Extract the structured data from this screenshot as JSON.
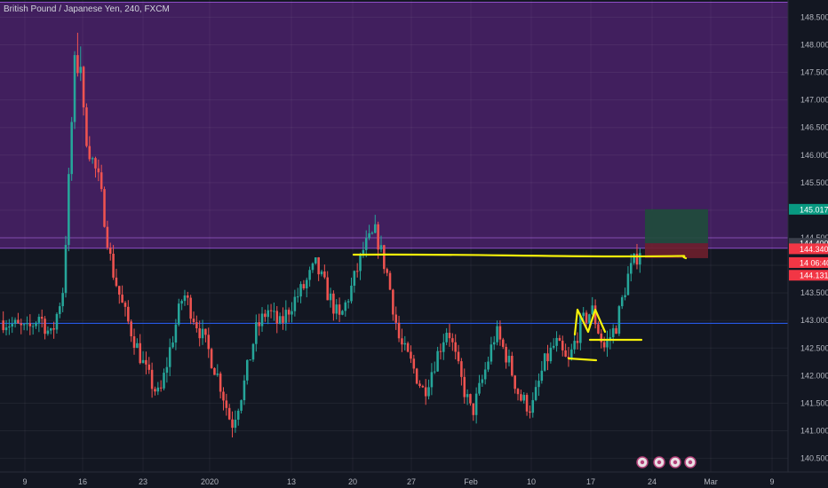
{
  "header": {
    "symbol_title": "British Pound / Japanese Yen, 240, FXCM"
  },
  "colors": {
    "background": "#131722",
    "up": "#26a69a",
    "down": "#ef5350",
    "zone_fill": "#4a2168",
    "zone_border": "#8e4ec6",
    "drawing": "#f5f10a",
    "blue_line": "#2962ff",
    "tp_fill": "#1f4d3b",
    "sl_fill": "#6e1f2c"
  },
  "chart_data": {
    "type": "candlestick",
    "title": "British Pound / Japanese Yen, 240, FXCM",
    "ylim": [
      140.3,
      148.78
    ],
    "y_ticks": [
      "148.500",
      "148.000",
      "147.500",
      "147.000",
      "146.500",
      "146.000",
      "145.500",
      "145.000",
      "144.500",
      "144.000",
      "143.500",
      "143.000",
      "142.500",
      "142.000",
      "141.500",
      "141.000",
      "140.500"
    ],
    "x_ticks": [
      "9",
      "16",
      "23",
      "2020",
      "13",
      "20",
      "27",
      "Feb",
      "10",
      "17",
      "24",
      "Mar",
      "9"
    ],
    "price_tags": [
      {
        "label": "145.017",
        "value": 145.017,
        "color": "#089981"
      },
      {
        "label": "144.400",
        "value": 144.4,
        "color": "#3a3f4b"
      },
      {
        "label": "144.340",
        "value": 144.3,
        "color": "#f23645"
      },
      {
        "label": "14 06:40",
        "value": 144.05,
        "color": "#f23645"
      },
      {
        "label": "144.131",
        "value": 143.82,
        "color": "#f23645"
      }
    ],
    "zone": {
      "top": 148.78,
      "bottom": 144.31
    },
    "horizontal_line": 142.95,
    "position": {
      "target": 145.017,
      "entry": 144.4,
      "stop": 144.131
    },
    "close_path": [
      143.0,
      142.9,
      142.8,
      143.1,
      142.7,
      143.6,
      147.9,
      146.2,
      145.5,
      144.0,
      143.2,
      142.6,
      142.0,
      141.6,
      142.6,
      143.5,
      143.0,
      142.5,
      141.9,
      141.1,
      141.8,
      142.8,
      143.2,
      142.9,
      143.3,
      143.6,
      144.0,
      143.5,
      143.0,
      143.6,
      144.3,
      144.6,
      143.8,
      142.6,
      142.2,
      141.7,
      142.3,
      142.9,
      142.0,
      141.3,
      142.0,
      142.8,
      142.3,
      141.6,
      141.4,
      142.2,
      142.6,
      142.2,
      142.9,
      143.2,
      142.5,
      142.9,
      143.8,
      144.3
    ],
    "series": [
      {
        "name": "British Pound / Japanese Yen",
        "type": "candles"
      }
    ]
  }
}
